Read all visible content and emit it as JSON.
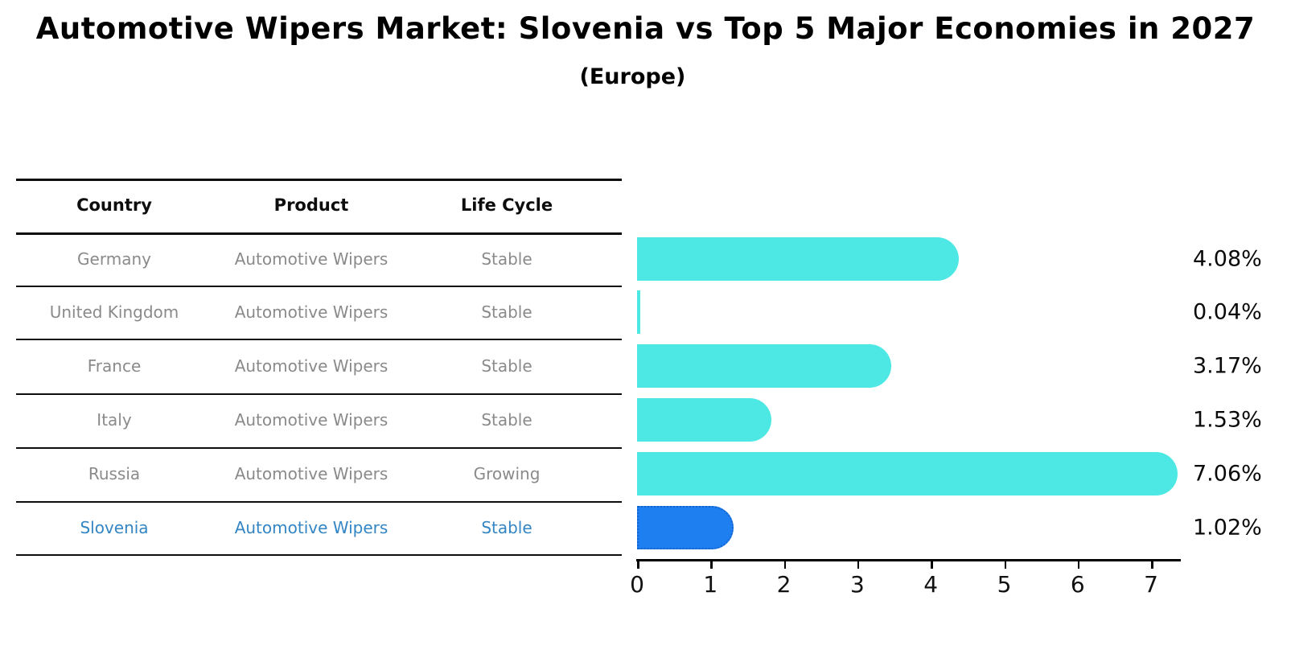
{
  "title": "Automotive Wipers Market: Slovenia vs Top 5 Major Economies in 2027",
  "subtitle": "(Europe)",
  "table": {
    "headers": [
      "Country",
      "Product",
      "Life Cycle"
    ],
    "rows": [
      {
        "country": "Germany",
        "product": "Automotive Wipers",
        "life_cycle": "Stable",
        "highlight": false
      },
      {
        "country": "United Kingdom",
        "product": "Automotive Wipers",
        "life_cycle": "Stable",
        "highlight": false
      },
      {
        "country": "France",
        "product": "Automotive Wipers",
        "life_cycle": "Stable",
        "highlight": false
      },
      {
        "country": "Italy",
        "product": "Automotive Wipers",
        "life_cycle": "Stable",
        "highlight": false
      },
      {
        "country": "Russia",
        "product": "Automotive Wipers",
        "life_cycle": "Growing",
        "highlight": false
      },
      {
        "country": "Slovenia",
        "product": "Automotive Wipers",
        "life_cycle": "Stable",
        "highlight": true
      }
    ]
  },
  "chart_data": {
    "type": "bar",
    "orientation": "horizontal",
    "title": "Automotive Wipers Market: Slovenia vs Top 5 Major Economies in 2027",
    "subtitle": "(Europe)",
    "categories": [
      "Germany",
      "United Kingdom",
      "France",
      "Italy",
      "Russia",
      "Slovenia"
    ],
    "values": [
      4.08,
      0.04,
      3.17,
      1.53,
      7.06,
      1.02
    ],
    "value_labels": [
      "4.08%",
      "0.04%",
      "3.17%",
      "1.53%",
      "7.06%",
      "1.02%"
    ],
    "xticks": [
      0,
      1,
      2,
      3,
      4,
      5,
      6,
      7
    ],
    "xlim": [
      0,
      7.4
    ],
    "grid": false,
    "legend": null,
    "highlight_index": 5,
    "bar_color": "#4DE8E4",
    "highlight_color": "#1E80F0",
    "highlight_border_color": "#1563CE"
  },
  "colors": {
    "background": "#ffffff",
    "title_text": "#000000",
    "table_header_text": "#0d0d0d",
    "table_row_text": "#8a8a8a",
    "highlight_row_text": "#3385C4",
    "axis": "#000000",
    "value_label_text": "#0a0a0a"
  }
}
